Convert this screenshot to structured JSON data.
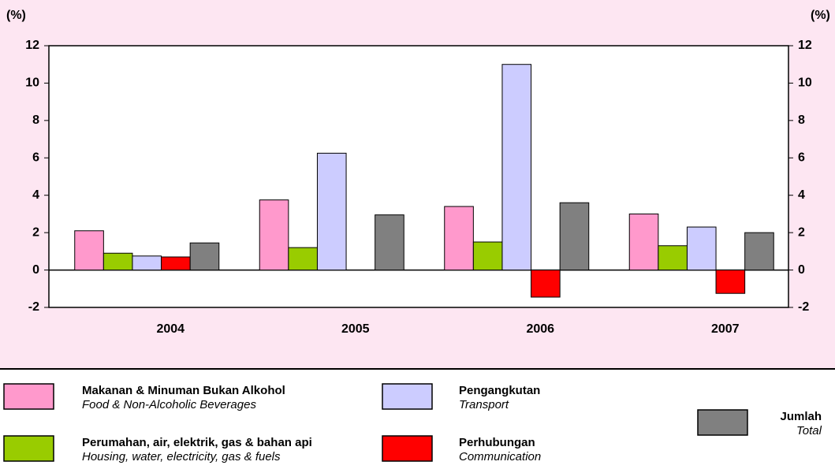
{
  "chart_data": {
    "type": "bar",
    "y_unit_left": "(%)",
    "y_unit_right": "(%)",
    "categories": [
      "2004",
      "2005",
      "2006",
      "2007"
    ],
    "series": [
      {
        "name": "Makanan & Minuman Bukan Alkohol",
        "translation": "Food & Non-Alcoholic Beverages",
        "color": "#ff99cc",
        "values": [
          2.1,
          3.75,
          3.4,
          3.0
        ]
      },
      {
        "name": "Perumahan, air, elektrik, gas & bahan api",
        "translation": "Housing, water, electricity, gas & fuels",
        "color": "#99cc00",
        "values": [
          0.9,
          1.2,
          1.5,
          1.3
        ]
      },
      {
        "name": "Pengangkutan",
        "translation": "Transport",
        "color": "#ccccff",
        "values": [
          0.75,
          6.25,
          11.0,
          2.3
        ]
      },
      {
        "name": "Perhubungan",
        "translation": "Communication",
        "color": "#ff0000",
        "values": [
          0.7,
          null,
          -1.45,
          -1.25
        ]
      },
      {
        "name": "Jumlah",
        "translation": "Total",
        "color": "#808080",
        "values": [
          1.45,
          2.95,
          3.6,
          2.0
        ]
      }
    ],
    "ylim": [
      -2,
      12
    ],
    "yticks": [
      -2,
      0,
      2,
      4,
      6,
      8,
      10,
      12
    ],
    "grid": false
  }
}
